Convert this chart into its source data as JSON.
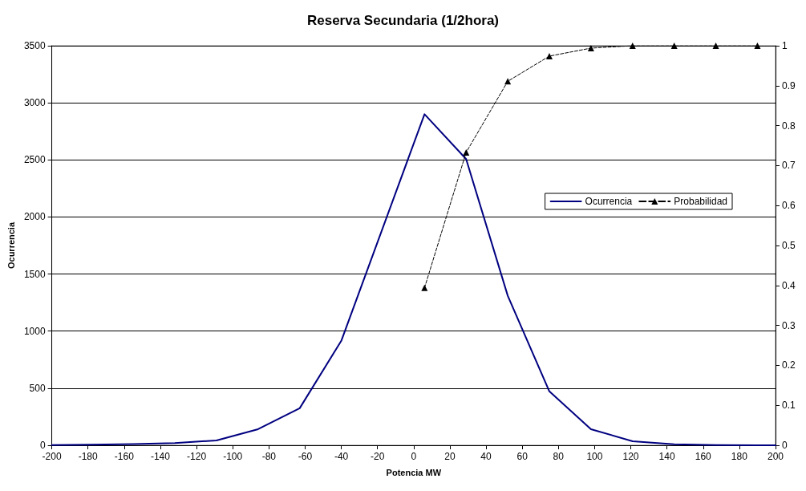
{
  "chart_data": {
    "type": "line",
    "title": "Reserva Secundaria (1/2hora)",
    "xlabel": "Potencia MW",
    "ylabel": "Ocurrencia",
    "xlim": [
      -200,
      200
    ],
    "xticks": [
      -200,
      -180,
      -160,
      -140,
      -120,
      -100,
      -80,
      -60,
      -40,
      -20,
      0,
      20,
      40,
      60,
      80,
      100,
      120,
      140,
      160,
      180,
      200
    ],
    "ylim": [
      0,
      3500
    ],
    "yticks": [
      0,
      500,
      1000,
      1500,
      2000,
      2500,
      3000,
      3500
    ],
    "y2lim": [
      0,
      1
    ],
    "y2ticks": [
      0,
      0.1,
      0.2,
      0.3,
      0.4,
      0.5,
      0.6,
      0.7,
      0.8,
      0.9,
      1
    ],
    "grid": "y",
    "legend": "right",
    "series": [
      {
        "name": "Ocurrencia",
        "color": "#000080",
        "marker": "none",
        "line_style": "solid",
        "x": [
          -200,
          -178,
          -155,
          -132,
          -109,
          -86,
          -63,
          -40,
          6,
          29,
          52,
          75,
          98,
          121,
          144,
          167,
          190,
          200
        ],
        "values": [
          2,
          5,
          10,
          20,
          42,
          141,
          324,
          915,
          2900,
          2507,
          1310,
          472,
          141,
          35,
          8,
          2,
          0,
          0
        ]
      },
      {
        "name": "Probabilidad",
        "color": "#000000",
        "axis": "y2",
        "marker": "triangle",
        "line_style": "dashed",
        "x": [
          6,
          29,
          52,
          75,
          98,
          121,
          144,
          167,
          190
        ],
        "values": [
          0.394,
          0.733,
          0.911,
          0.974,
          0.994,
          1,
          1,
          1,
          1
        ]
      }
    ]
  }
}
